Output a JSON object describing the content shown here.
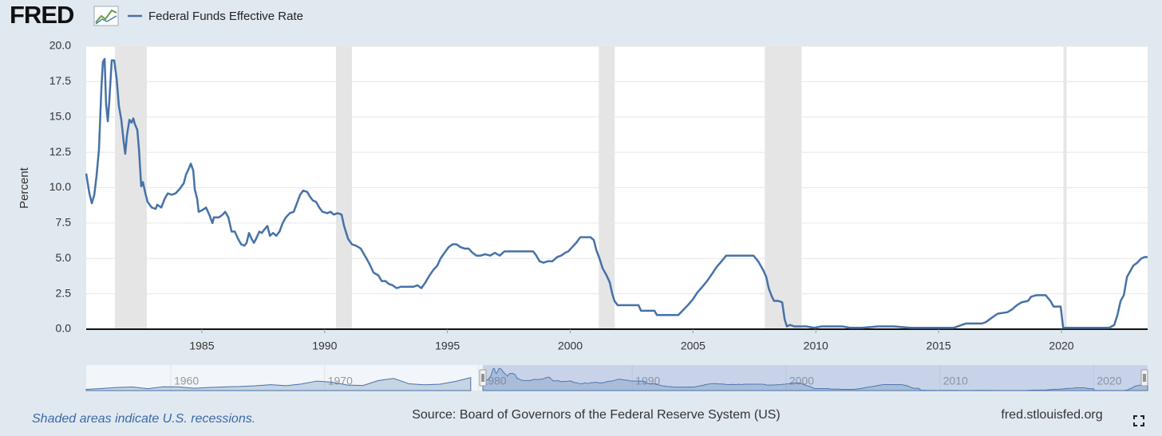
{
  "chart_data": {
    "type": "line",
    "logo": "FRED",
    "ylabel": "Percent",
    "recession_note": "Shaded areas indicate U.S. recessions.",
    "source": "Source: Board of Governors of the Federal Reserve System (US)",
    "site": "fred.stlouisfed.org",
    "xlim": [
      1980.29,
      2023.51
    ],
    "xticks": [
      1985,
      1990,
      1995,
      2000,
      2005,
      2010,
      2015,
      2020
    ],
    "ylim": [
      0,
      20
    ],
    "yticks": [
      {
        "value": 0,
        "label": "0.0"
      },
      2.5,
      {
        "value": 5,
        "label": "5.0"
      },
      7.5,
      {
        "value": 10,
        "label": "10.0"
      },
      12.5,
      {
        "value": 15,
        "label": "15.0"
      },
      17.5,
      {
        "value": 20,
        "label": "20.0"
      }
    ],
    "grid": true,
    "recessions": [
      [
        1981.46,
        1982.76
      ],
      [
        1990.46,
        1991.11
      ],
      [
        2001.16,
        2001.81
      ],
      [
        2007.92,
        2009.42
      ],
      [
        2020.08,
        2020.21
      ]
    ],
    "x": [
      1980.29,
      1980.42,
      1980.52,
      1980.62,
      1980.71,
      1980.81,
      1980.91,
      1980.97,
      1981.04,
      1981.1,
      1981.17,
      1981.23,
      1981.33,
      1981.43,
      1981.53,
      1981.62,
      1981.72,
      1981.82,
      1981.88,
      1981.95,
      1982.05,
      1982.14,
      1982.21,
      1982.27,
      1982.37,
      1982.44,
      1982.53,
      1982.6,
      1982.7,
      1982.79,
      1982.96,
      1983.12,
      1983.18,
      1983.35,
      1983.48,
      1983.61,
      1983.77,
      1983.93,
      1984.09,
      1984.26,
      1984.35,
      1984.48,
      1984.55,
      1984.65,
      1984.71,
      1984.81,
      1984.87,
      1985.0,
      1985.17,
      1985.3,
      1985.43,
      1985.49,
      1985.69,
      1985.85,
      1985.95,
      1986.08,
      1986.21,
      1986.34,
      1986.47,
      1986.6,
      1986.73,
      1986.82,
      1986.92,
      1987.02,
      1987.12,
      1987.21,
      1987.34,
      1987.44,
      1987.57,
      1987.67,
      1987.77,
      1987.9,
      1988.03,
      1988.16,
      1988.29,
      1988.42,
      1988.58,
      1988.74,
      1988.87,
      1989.0,
      1989.13,
      1989.29,
      1989.39,
      1989.52,
      1989.65,
      1989.78,
      1989.91,
      1990.11,
      1990.24,
      1990.37,
      1990.53,
      1990.69,
      1990.79,
      1990.95,
      1991.11,
      1991.28,
      1991.47,
      1991.67,
      1991.83,
      1991.99,
      1992.19,
      1992.32,
      1992.48,
      1992.61,
      1992.77,
      1992.93,
      1993.1,
      1993.26,
      1993.45,
      1993.62,
      1993.78,
      1993.94,
      1994.1,
      1994.27,
      1994.43,
      1994.59,
      1994.72,
      1994.88,
      1995.05,
      1995.21,
      1995.37,
      1995.53,
      1995.7,
      1995.86,
      1996.02,
      1996.18,
      1996.35,
      1996.54,
      1996.74,
      1996.93,
      1997.13,
      1997.32,
      1997.58,
      1997.84,
      1998.1,
      1998.3,
      1998.49,
      1998.62,
      1998.75,
      1998.91,
      1999.08,
      1999.27,
      1999.47,
      1999.63,
      1999.79,
      1999.92,
      2000.08,
      2000.24,
      2000.41,
      2000.6,
      2000.83,
      2000.96,
      2001.06,
      2001.19,
      2001.32,
      2001.48,
      2001.61,
      2001.71,
      2001.8,
      2001.93,
      2002.13,
      2002.39,
      2002.65,
      2002.78,
      2002.88,
      2003.1,
      2003.43,
      2003.53,
      2003.75,
      2004.08,
      2004.4,
      2004.57,
      2004.79,
      2004.99,
      2005.18,
      2005.38,
      2005.57,
      2005.77,
      2005.96,
      2006.16,
      2006.35,
      2006.55,
      2006.84,
      2007.17,
      2007.46,
      2007.65,
      2007.85,
      2007.98,
      2008.08,
      2008.21,
      2008.3,
      2008.47,
      2008.63,
      2008.73,
      2008.82,
      2008.95,
      2009.12,
      2009.28,
      2009.6,
      2009.93,
      2010.25,
      2010.74,
      2011.07,
      2011.39,
      2011.88,
      2012.53,
      2013.18,
      2013.83,
      2014.48,
      2015.13,
      2015.62,
      2015.94,
      2016.11,
      2016.76,
      2016.92,
      2017.08,
      2017.24,
      2017.41,
      2017.8,
      2017.99,
      2018.19,
      2018.38,
      2018.64,
      2018.77,
      2018.97,
      2019.36,
      2019.55,
      2019.68,
      2019.85,
      2019.97,
      2020.07,
      2020.2,
      2020.49,
      2020.98,
      2021.47,
      2021.95,
      2022.15,
      2022.28,
      2022.41,
      2022.54,
      2022.67,
      2022.8,
      2022.93,
      2023.09,
      2023.25,
      2023.38,
      2023.51
    ],
    "series": [
      {
        "name": "Federal Funds Effective Rate",
        "color": "#4572a7",
        "values": [
          11.0,
          9.6,
          8.9,
          9.5,
          10.8,
          12.7,
          17.1,
          18.9,
          19.1,
          15.9,
          14.7,
          16.1,
          19.0,
          19.0,
          17.7,
          15.8,
          14.8,
          13.2,
          12.4,
          13.7,
          14.8,
          14.6,
          14.9,
          14.5,
          14.1,
          12.7,
          10.1,
          10.4,
          9.6,
          9.0,
          8.6,
          8.5,
          8.8,
          8.6,
          9.2,
          9.6,
          9.5,
          9.6,
          9.9,
          10.3,
          10.9,
          11.4,
          11.7,
          11.2,
          9.9,
          9.2,
          8.3,
          8.4,
          8.6,
          8.1,
          7.5,
          7.9,
          7.9,
          8.1,
          8.3,
          7.9,
          6.9,
          6.9,
          6.4,
          6.0,
          5.9,
          6.1,
          6.8,
          6.4,
          6.1,
          6.4,
          6.9,
          6.8,
          7.1,
          7.3,
          6.6,
          6.8,
          6.6,
          6.9,
          7.5,
          7.9,
          8.2,
          8.3,
          8.9,
          9.5,
          9.8,
          9.7,
          9.4,
          9.1,
          9.0,
          8.6,
          8.3,
          8.2,
          8.3,
          8.1,
          8.2,
          8.1,
          7.3,
          6.4,
          6.0,
          5.9,
          5.7,
          5.1,
          4.6,
          4.0,
          3.8,
          3.4,
          3.4,
          3.2,
          3.1,
          2.9,
          3.0,
          3.0,
          3.0,
          3.0,
          3.1,
          2.9,
          3.3,
          3.8,
          4.2,
          4.5,
          5.0,
          5.4,
          5.8,
          6.0,
          6.0,
          5.8,
          5.7,
          5.7,
          5.4,
          5.2,
          5.2,
          5.3,
          5.2,
          5.4,
          5.2,
          5.5,
          5.5,
          5.5,
          5.5,
          5.5,
          5.5,
          5.2,
          4.8,
          4.7,
          4.8,
          4.8,
          5.1,
          5.2,
          5.4,
          5.5,
          5.8,
          6.1,
          6.5,
          6.5,
          6.5,
          6.3,
          5.6,
          5.0,
          4.3,
          3.8,
          3.3,
          2.5,
          2.0,
          1.7,
          1.7,
          1.7,
          1.7,
          1.7,
          1.3,
          1.3,
          1.3,
          1.0,
          1.0,
          1.0,
          1.0,
          1.3,
          1.7,
          2.1,
          2.6,
          3.0,
          3.4,
          3.9,
          4.4,
          4.8,
          5.2,
          5.2,
          5.2,
          5.2,
          5.2,
          4.8,
          4.2,
          3.7,
          2.9,
          2.3,
          2.0,
          2.0,
          1.9,
          0.7,
          0.2,
          0.3,
          0.2,
          0.2,
          0.2,
          0.1,
          0.2,
          0.2,
          0.2,
          0.1,
          0.1,
          0.2,
          0.2,
          0.1,
          0.1,
          0.1,
          0.1,
          0.3,
          0.4,
          0.4,
          0.5,
          0.7,
          0.9,
          1.1,
          1.2,
          1.4,
          1.7,
          1.9,
          2.0,
          2.3,
          2.4,
          2.4,
          2.0,
          1.6,
          1.6,
          1.6,
          0.1,
          0.1,
          0.1,
          0.1,
          0.1,
          0.1,
          0.3,
          1.0,
          2.0,
          2.4,
          3.7,
          4.1,
          4.5,
          4.7,
          5.0,
          5.1,
          5.1
        ]
      }
    ],
    "navigator": {
      "xlim": [
        1954.5,
        2023.51
      ],
      "ylim": [
        0,
        22
      ],
      "xticks": [
        1960,
        1970,
        1980,
        1990,
        2000,
        2010,
        2020
      ],
      "x": [
        1954.5,
        1955.5,
        1956.5,
        1957.5,
        1958.5,
        1959.5,
        1960.5,
        1961.5,
        1962.5,
        1963.5,
        1964.5,
        1965.5,
        1966.5,
        1967.5,
        1968.5,
        1969.5,
        1970.5,
        1971.5,
        1972.5,
        1973.5,
        1974.5,
        1975.5,
        1976.5,
        1977.5,
        1978.5,
        1979.5
      ],
      "values": [
        1.0,
        1.8,
        2.7,
        3.1,
        1.6,
        3.3,
        3.2,
        2.0,
        2.7,
        3.2,
        3.5,
        4.1,
        5.1,
        4.2,
        5.7,
        8.2,
        7.2,
        4.7,
        4.4,
        8.7,
        10.5,
        5.8,
        5.0,
        5.5,
        7.9,
        11.2
      ]
    }
  }
}
